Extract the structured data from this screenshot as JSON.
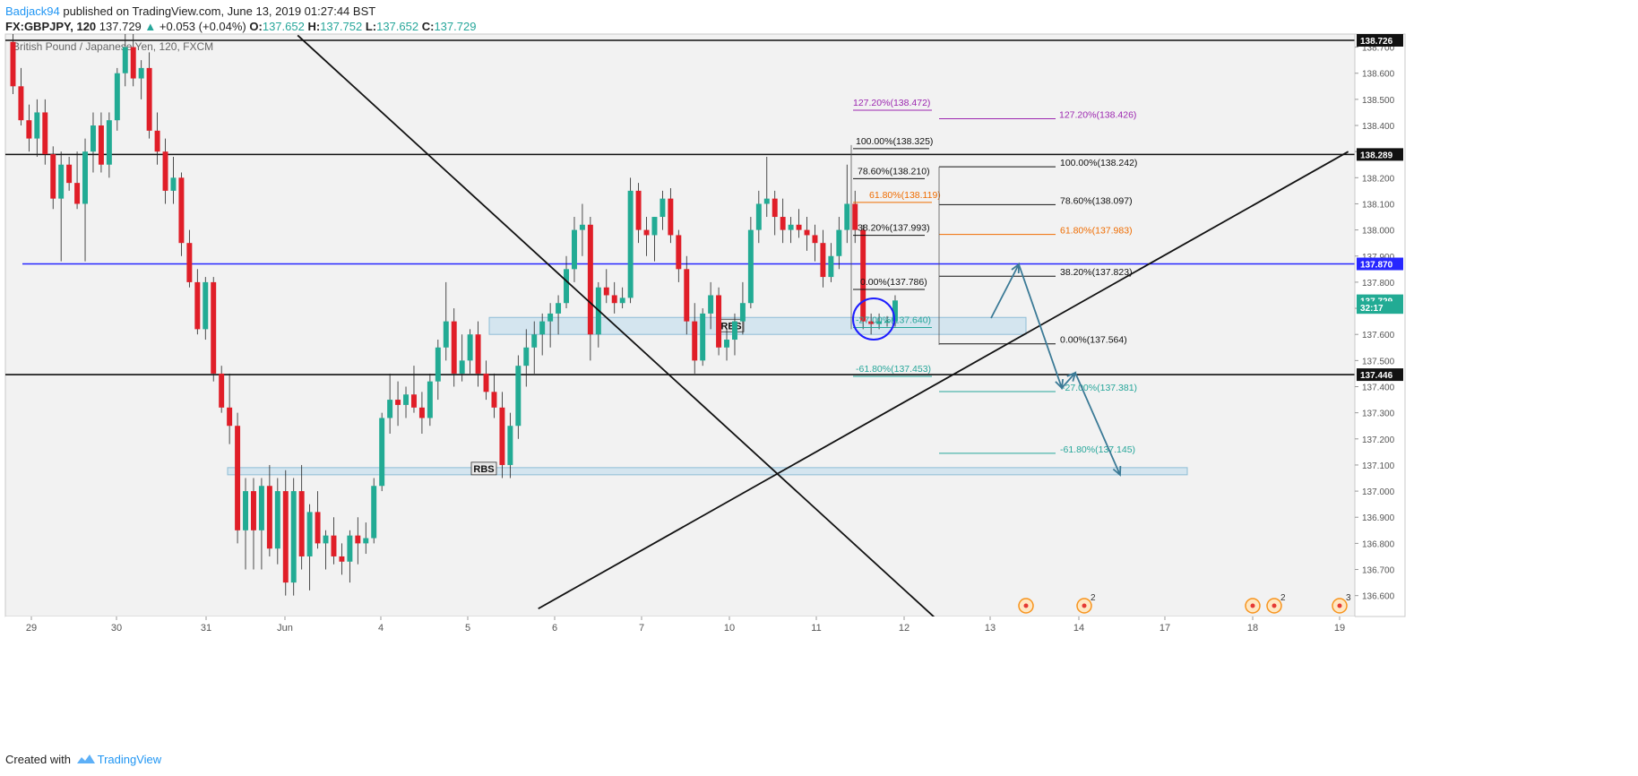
{
  "header": {
    "publisher": "Badjack94",
    "published_text": "published on TradingView.com, June 13, 2019 01:27:44 BST",
    "symbol": "FX:GBPJPY, 120",
    "last": "137.729",
    "change": "+0.053 (+0.04%)",
    "open_label": "O:",
    "open": "137.652",
    "high_label": "H:",
    "high": "137.752",
    "low_label": "L:",
    "low": "137.652",
    "close_label": "C:",
    "close": "137.729"
  },
  "footer": {
    "created_with": "Created with",
    "brand": "TradingView"
  },
  "colors": {
    "up": "#26a69a",
    "down": "#ef5350",
    "candle_up": "#22ab94",
    "candle_down": "#e01e28",
    "blue_level": "#2626ff",
    "zone_fill": "#cfe3ee",
    "fib_purple": "#9c27b0",
    "fib_orange": "#ef6c00",
    "fib_green": "#26a69a",
    "arrow": "#3b7a96",
    "circle": "#1e1eff"
  },
  "chart_data": {
    "type": "candlestick",
    "title": "British Pound / Japanese Yen, 120, FXCM",
    "y_ticks": [
      136.6,
      136.7,
      136.8,
      136.9,
      137.0,
      137.1,
      137.2,
      137.3,
      137.4,
      137.5,
      137.6,
      137.7,
      137.8,
      137.9,
      138.0,
      138.1,
      138.2,
      138.3,
      138.4,
      138.5,
      138.6,
      138.7
    ],
    "ylim": [
      136.52,
      138.75
    ],
    "x_labels": [
      "29",
      "30",
      "31",
      "Jun",
      "4",
      "5",
      "6",
      "7",
      "10",
      "11",
      "12",
      "13",
      "14",
      "17",
      "18",
      "19"
    ],
    "price_badges": [
      {
        "label": "138.726",
        "value": 138.726
      },
      {
        "label": "138.289",
        "value": 138.289
      },
      {
        "label": "137.870",
        "value": 137.87
      },
      {
        "label": "137.729",
        "value": 137.729
      },
      {
        "label": "32:17",
        "value": 137.703
      },
      {
        "label": "137.446",
        "value": 137.446
      }
    ],
    "horizontal_levels": [
      138.726,
      138.289,
      137.446
    ],
    "blue_level": 137.87,
    "zones": [
      {
        "label": "RBS",
        "top": 137.665,
        "bottom": 137.6
      },
      {
        "label": "RBS",
        "top": 137.09,
        "bottom": 137.068
      }
    ],
    "candles": [
      [
        138.72,
        138.75,
        138.52,
        138.55
      ],
      [
        138.55,
        138.62,
        138.4,
        138.42
      ],
      [
        138.42,
        138.48,
        138.3,
        138.35
      ],
      [
        138.35,
        138.5,
        138.28,
        138.45
      ],
      [
        138.45,
        138.5,
        138.25,
        138.29
      ],
      [
        138.29,
        138.32,
        138.08,
        138.12
      ],
      [
        138.12,
        138.3,
        137.88,
        138.25
      ],
      [
        138.25,
        138.28,
        138.15,
        138.18
      ],
      [
        138.18,
        138.3,
        138.08,
        138.1
      ],
      [
        138.1,
        138.35,
        137.88,
        138.3
      ],
      [
        138.3,
        138.45,
        138.22,
        138.4
      ],
      [
        138.4,
        138.45,
        138.22,
        138.25
      ],
      [
        138.25,
        138.45,
        138.2,
        138.42
      ],
      [
        138.42,
        138.62,
        138.38,
        138.6
      ],
      [
        138.6,
        138.75,
        138.55,
        138.7
      ],
      [
        138.7,
        138.75,
        138.55,
        138.58
      ],
      [
        138.58,
        138.65,
        138.5,
        138.62
      ],
      [
        138.62,
        138.68,
        138.35,
        138.38
      ],
      [
        138.38,
        138.45,
        138.25,
        138.3
      ],
      [
        138.3,
        138.35,
        138.1,
        138.15
      ],
      [
        138.15,
        138.28,
        138.1,
        138.2
      ],
      [
        138.2,
        138.22,
        137.9,
        137.95
      ],
      [
        137.95,
        138.0,
        137.78,
        137.8
      ],
      [
        137.8,
        137.85,
        137.6,
        137.62
      ],
      [
        137.62,
        137.82,
        137.58,
        137.8
      ],
      [
        137.8,
        137.82,
        137.42,
        137.45
      ],
      [
        137.45,
        137.48,
        137.3,
        137.32
      ],
      [
        137.32,
        137.45,
        137.18,
        137.25
      ],
      [
        137.25,
        137.3,
        136.8,
        136.85
      ],
      [
        136.85,
        137.05,
        136.7,
        137.0
      ],
      [
        137.0,
        137.05,
        136.7,
        136.85
      ],
      [
        136.85,
        137.05,
        136.7,
        137.02
      ],
      [
        137.02,
        137.1,
        136.75,
        136.78
      ],
      [
        136.78,
        137.05,
        136.72,
        137.0
      ],
      [
        137.0,
        137.08,
        136.6,
        136.65
      ],
      [
        136.65,
        137.05,
        136.6,
        137.0
      ],
      [
        137.0,
        137.1,
        136.7,
        136.75
      ],
      [
        136.75,
        136.95,
        136.62,
        136.92
      ],
      [
        136.92,
        137.0,
        136.78,
        136.8
      ],
      [
        136.8,
        136.85,
        136.7,
        136.83
      ],
      [
        136.83,
        136.9,
        136.72,
        136.75
      ],
      [
        136.75,
        136.8,
        136.68,
        136.73
      ],
      [
        136.73,
        136.85,
        136.65,
        136.83
      ],
      [
        136.83,
        136.9,
        136.72,
        136.8
      ],
      [
        136.8,
        136.88,
        136.76,
        136.82
      ],
      [
        136.82,
        137.05,
        136.8,
        137.02
      ],
      [
        137.02,
        137.3,
        137.0,
        137.28
      ],
      [
        137.28,
        137.45,
        137.22,
        137.35
      ],
      [
        137.35,
        137.42,
        137.25,
        137.33
      ],
      [
        137.33,
        137.4,
        137.28,
        137.37
      ],
      [
        137.37,
        137.48,
        137.3,
        137.32
      ],
      [
        137.32,
        137.38,
        137.22,
        137.28
      ],
      [
        137.28,
        137.45,
        137.25,
        137.42
      ],
      [
        137.42,
        137.58,
        137.35,
        137.55
      ],
      [
        137.55,
        137.8,
        137.5,
        137.65
      ],
      [
        137.65,
        137.7,
        137.4,
        137.45
      ],
      [
        137.45,
        137.6,
        137.42,
        137.5
      ],
      [
        137.5,
        137.62,
        137.45,
        137.6
      ],
      [
        137.6,
        137.65,
        137.4,
        137.45
      ],
      [
        137.45,
        137.5,
        137.35,
        137.38
      ],
      [
        137.38,
        137.45,
        137.28,
        137.32
      ],
      [
        137.32,
        137.38,
        137.05,
        137.1
      ],
      [
        137.1,
        137.3,
        137.05,
        137.25
      ],
      [
        137.25,
        137.52,
        137.2,
        137.48
      ],
      [
        137.48,
        137.62,
        137.4,
        137.55
      ],
      [
        137.55,
        137.65,
        137.45,
        137.6
      ],
      [
        137.6,
        137.68,
        137.52,
        137.65
      ],
      [
        137.65,
        137.72,
        137.55,
        137.68
      ],
      [
        137.68,
        137.75,
        137.6,
        137.72
      ],
      [
        137.72,
        137.9,
        137.7,
        137.85
      ],
      [
        137.85,
        138.05,
        137.8,
        138.0
      ],
      [
        138.0,
        138.1,
        137.9,
        138.02
      ],
      [
        138.02,
        138.05,
        137.5,
        137.6
      ],
      [
        137.6,
        137.8,
        137.55,
        137.78
      ],
      [
        137.78,
        137.85,
        137.72,
        137.75
      ],
      [
        137.75,
        137.8,
        137.68,
        137.72
      ],
      [
        137.72,
        137.78,
        137.7,
        137.74
      ],
      [
        137.74,
        138.2,
        137.72,
        138.15
      ],
      [
        138.15,
        138.18,
        137.95,
        138.0
      ],
      [
        138.0,
        138.05,
        137.9,
        137.98
      ],
      [
        137.98,
        138.05,
        137.88,
        138.05
      ],
      [
        138.05,
        138.15,
        138.0,
        138.12
      ],
      [
        138.12,
        138.16,
        137.95,
        137.98
      ],
      [
        137.98,
        138.0,
        137.8,
        137.85
      ],
      [
        137.85,
        137.9,
        137.6,
        137.65
      ],
      [
        137.65,
        137.72,
        137.45,
        137.5
      ],
      [
        137.5,
        137.7,
        137.48,
        137.68
      ],
      [
        137.68,
        137.8,
        137.62,
        137.75
      ],
      [
        137.75,
        137.78,
        137.52,
        137.55
      ],
      [
        137.55,
        137.62,
        137.5,
        137.58
      ],
      [
        137.58,
        137.68,
        137.52,
        137.65
      ],
      [
        137.65,
        137.8,
        137.6,
        137.72
      ],
      [
        137.72,
        138.05,
        137.7,
        138.0
      ],
      [
        138.0,
        138.15,
        137.95,
        138.1
      ],
      [
        138.1,
        138.28,
        138.05,
        138.12
      ],
      [
        138.12,
        138.15,
        137.98,
        138.05
      ],
      [
        138.05,
        138.12,
        137.95,
        138.0
      ],
      [
        138.0,
        138.05,
        137.95,
        138.02
      ],
      [
        138.02,
        138.08,
        137.97,
        138.0
      ],
      [
        138.0,
        138.05,
        137.92,
        137.98
      ],
      [
        137.98,
        138.02,
        137.88,
        137.95
      ],
      [
        137.95,
        138.0,
        137.78,
        137.82
      ],
      [
        137.82,
        137.95,
        137.8,
        137.9
      ],
      [
        137.9,
        138.05,
        137.85,
        138.0
      ],
      [
        138.0,
        138.25,
        137.95,
        138.1
      ],
      [
        138.1,
        138.15,
        137.95,
        138.0
      ],
      [
        138.0,
        138.02,
        137.62,
        137.65
      ],
      [
        137.65,
        137.68,
        137.6,
        137.64
      ],
      [
        137.64,
        137.68,
        137.62,
        137.65
      ],
      [
        137.65,
        137.67,
        137.63,
        137.65
      ],
      [
        137.65,
        137.75,
        137.63,
        137.73
      ]
    ],
    "trendlines": [
      {
        "from": [
          36,
          138.745
        ],
        "to": [
          116,
          136.5
        ]
      },
      {
        "from": [
          66,
          136.55
        ],
        "to": [
          167,
          138.3
        ]
      }
    ],
    "fib_labels": [
      {
        "text": "127.20%(138.472)",
        "value": 138.472,
        "color": "purple"
      },
      {
        "text": "127.20%(138.426)",
        "value": 138.426,
        "color": "purple"
      },
      {
        "text": "100.00%(138.325)",
        "value": 138.325,
        "color": "black"
      },
      {
        "text": "100.00%(138.242)",
        "value": 138.242,
        "color": "black"
      },
      {
        "text": "78.60%(138.210)",
        "value": 138.21,
        "color": "black"
      },
      {
        "text": "61.80%(138.119)",
        "value": 138.119,
        "color": "orange"
      },
      {
        "text": "78.60%(138.097)",
        "value": 138.097,
        "color": "black"
      },
      {
        "text": "38.20%(137.993)",
        "value": 137.993,
        "color": "black"
      },
      {
        "text": "61.80%(137.983)",
        "value": 137.983,
        "color": "orange"
      },
      {
        "text": "38.20%(137.823)",
        "value": 137.823,
        "color": "black"
      },
      {
        "text": "0.00%(137.786)",
        "value": 137.786,
        "color": "black"
      },
      {
        "text": "-27.00%(137.640)",
        "value": 137.64,
        "color": "green"
      },
      {
        "text": "0.00%(137.564)",
        "value": 137.564,
        "color": "black"
      },
      {
        "text": "-61.80%(137.453)",
        "value": 137.453,
        "color": "green"
      },
      {
        "text": "-27.00%(137.381)",
        "value": 137.381,
        "color": "green"
      },
      {
        "text": "-61.80%(137.145)",
        "value": 137.145,
        "color": "green"
      }
    ],
    "event_markers": [
      {
        "label": "",
        "x": 13.4
      },
      {
        "label": "2",
        "x": 14.0
      },
      {
        "label": "2",
        "x": 18.1
      },
      {
        "label": "3",
        "x": 19.0
      }
    ]
  }
}
